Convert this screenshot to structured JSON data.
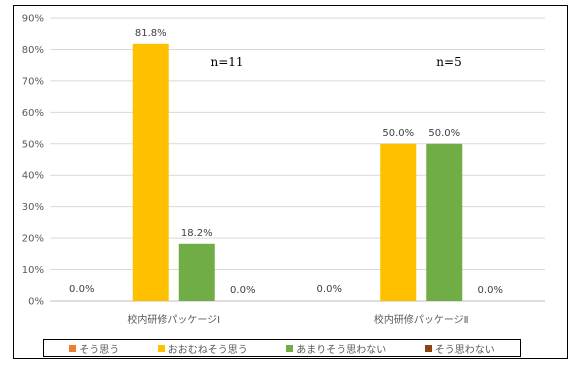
{
  "chart_data": {
    "type": "bar",
    "categories": [
      "校内研修パッケージⅠ",
      "校内研修パッケージⅡ"
    ],
    "series": [
      {
        "name": "そう思う",
        "values": [
          0.0,
          0.0
        ],
        "labels": [
          "",
          ""
        ],
        "color": "#ED7D31"
      },
      {
        "name": "おおむねそう思う",
        "values": [
          81.8,
          50.0
        ],
        "labels": [
          "81.8%",
          "50.0%"
        ],
        "color": "#FFC000"
      },
      {
        "name": "あまりそう思わない",
        "values": [
          18.2,
          50.0
        ],
        "labels": [
          "18.2%",
          "50.0%"
        ],
        "color": "#70AD47"
      },
      {
        "name": "そう思わない",
        "values": [
          0.0,
          0.0
        ],
        "labels": [
          "0.0%",
          "0.0%"
        ],
        "color": "#8B4513"
      }
    ],
    "zero_labels": [
      "0.0%",
      "0.0%"
    ],
    "yticks": [
      "0%",
      "10%",
      "20%",
      "30%",
      "40%",
      "50%",
      "60%",
      "70%",
      "80%",
      "90%"
    ],
    "ylim": [
      0,
      90
    ],
    "annotations": [
      "n=11",
      "n=5"
    ],
    "grid": true,
    "legend_position": "bottom"
  },
  "legend": {
    "items": [
      {
        "label": "そう思う",
        "color": "#ED7D31"
      },
      {
        "label": "おおむねそう思う",
        "color": "#FFC000"
      },
      {
        "label": "あまりそう思わない",
        "color": "#70AD47"
      },
      {
        "label": "そう思わない",
        "color": "#8B4513"
      }
    ]
  }
}
